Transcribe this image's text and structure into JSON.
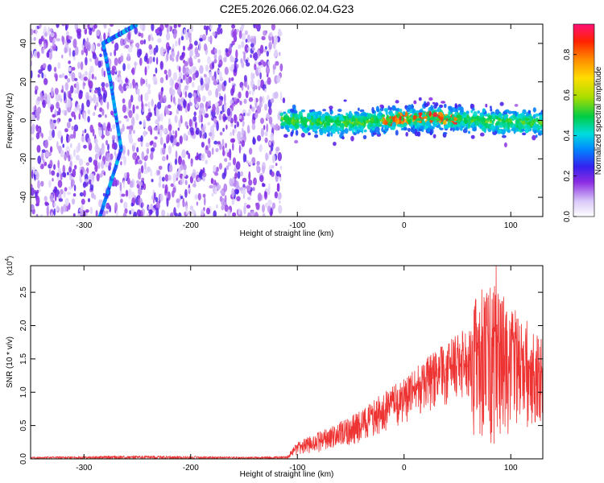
{
  "title": "C2E5.2026.066.02.04.G23",
  "colors": {
    "signal": "#ee3333",
    "axis": "#000000"
  },
  "chart_data": [
    {
      "type": "heatmap",
      "title": "C2E5.2026.066.02.04.G23",
      "xlabel": "Height of straight line (km)",
      "ylabel": "Frequency (Hz)",
      "xlim": [
        -350,
        130
      ],
      "ylim": [
        -50,
        50
      ],
      "xticks": [
        -300,
        -200,
        -100,
        0,
        100
      ],
      "yticks": [
        -40,
        -20,
        0,
        20,
        40
      ],
      "colorbar": {
        "label": "Normalized spectral amplitude",
        "range": [
          0,
          0.95
        ],
        "ticks": [
          0.0,
          0.2,
          0.4,
          0.6,
          0.8
        ]
      },
      "features": [
        {
          "name": "dense-noise-region",
          "x_range": [
            -350,
            -115
          ]
        },
        {
          "name": "central-band",
          "x_range": [
            -115,
            130
          ],
          "frequency_hz": 0
        },
        {
          "name": "diagonal-trace",
          "points": [
            [
              -285,
              -50
            ],
            [
              -265,
              -15
            ],
            [
              -275,
              20
            ],
            [
              -282,
              40
            ],
            [
              -250,
              50
            ]
          ]
        }
      ]
    },
    {
      "type": "line",
      "xlabel": "Height of straight line (km)",
      "ylabel": "SNR (10 * v/v)",
      "scale_label": "(x10",
      "scale_exp": "4",
      "xlim": [
        -350,
        130
      ],
      "ylim": [
        0,
        2.9
      ],
      "xticks": [
        -300,
        -200,
        -100,
        0,
        100
      ],
      "yticks": [
        "0.0",
        "0.5",
        "1.0",
        "1.5",
        "2.0",
        "2.5"
      ],
      "envelope": {
        "x": [
          -350,
          -300,
          -250,
          -200,
          -150,
          -110,
          -100,
          -80,
          -60,
          -40,
          -20,
          0,
          20,
          40,
          60,
          65,
          80,
          100,
          120,
          130
        ],
        "upper": [
          0.03,
          0.04,
          0.05,
          0.04,
          0.03,
          0.04,
          0.25,
          0.4,
          0.55,
          0.75,
          1.0,
          1.2,
          1.5,
          1.75,
          2.0,
          2.4,
          2.7,
          2.3,
          2.0,
          1.8
        ],
        "lower": [
          0.0,
          0.0,
          0.0,
          0.0,
          0.0,
          0.0,
          0.05,
          0.1,
          0.15,
          0.2,
          0.35,
          0.5,
          0.7,
          0.8,
          0.9,
          0.3,
          0.2,
          0.3,
          0.5,
          0.5
        ]
      }
    }
  ]
}
